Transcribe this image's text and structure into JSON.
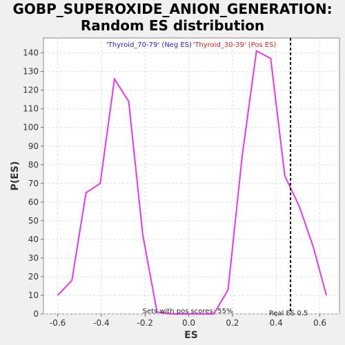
{
  "title_line1": "GOBP_SUPEROXIDE_ANION_GENERATION:",
  "title_line2": "Random ES distribution",
  "colors": {
    "background": "#f0f0f0",
    "plot_bg": "#ffffff",
    "curve": "#ee33ee",
    "neg_legend": "#2222cc",
    "pos_legend": "#dd2222",
    "real_es_line": "#000000",
    "grid": "#dddddd"
  },
  "chart_data": {
    "type": "line",
    "title": "GOBP_SUPEROXIDE_ANION_GENERATION: Random ES distribution",
    "xlabel": "ES",
    "ylabel": "P(ES)",
    "xlim": [
      -0.665,
      0.69
    ],
    "ylim": [
      0,
      148
    ],
    "xticks": [
      -0.6,
      -0.4,
      -0.2,
      0.0,
      0.2,
      0.4,
      0.6
    ],
    "xtick_labels": [
      "-0.6",
      "-0.4",
      "-0.2",
      "0.0",
      "0.2",
      "0.4",
      "0.6"
    ],
    "yticks": [
      0,
      10,
      20,
      30,
      40,
      50,
      60,
      70,
      80,
      90,
      100,
      110,
      120,
      130,
      140
    ],
    "ytick_labels": [
      "0",
      "10",
      "20",
      "30",
      "40",
      "50",
      "60",
      "70",
      "80",
      "90",
      "100",
      "110",
      "120",
      "130",
      "140"
    ],
    "grid": true,
    "legend_placement": "top-center",
    "legend": {
      "neg": "'Thyroid_70-79' (Neg ES)",
      "pos": "'Thyroid_30-39' (Pos ES)"
    },
    "series": [
      {
        "x": [
          -0.6,
          -0.535,
          -0.47,
          -0.405,
          -0.34,
          -0.275,
          -0.21,
          -0.145,
          -0.08,
          -0.015,
          0.05,
          0.115,
          0.18,
          0.245,
          0.31,
          0.375,
          0.44,
          0.505,
          0.57,
          0.63
        ],
        "y": [
          10,
          18,
          65,
          70,
          126,
          114,
          42,
          1,
          0,
          0,
          0,
          0,
          13,
          85,
          141,
          137,
          74,
          58,
          36,
          10
        ]
      }
    ],
    "real_es": 0.466,
    "annotations": {
      "pos_scores": "Sets with pos scores: 55%",
      "real_es_label": "Real ES 0.5"
    }
  }
}
